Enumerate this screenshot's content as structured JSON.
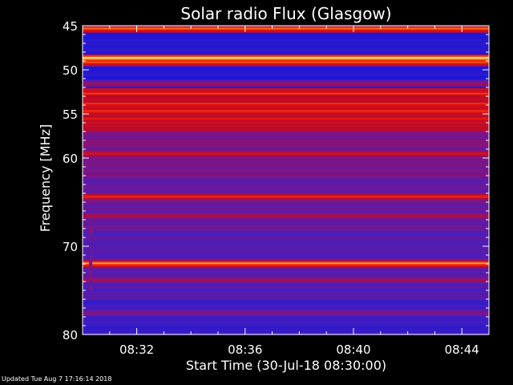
{
  "chart_data": {
    "type": "heatmap",
    "title": "Solar radio Flux (Glasgow)",
    "xlabel": "Start Time (30-Jul-18 08:30:00)",
    "ylabel": "Frequency [MHz]",
    "x_ticks": [
      "08:32",
      "08:36",
      "08:40",
      "08:44"
    ],
    "x_tick_minutes": [
      2,
      6,
      10,
      14
    ],
    "x_range_minutes": [
      0,
      15
    ],
    "y_ticks": [
      45,
      50,
      55,
      60,
      70,
      80
    ],
    "y_range": [
      45,
      80
    ],
    "bands": [
      {
        "freq": 45.3,
        "intensity": 0.9
      },
      {
        "freq": 48.6,
        "intensity": 1.0
      },
      {
        "freq": 49.1,
        "intensity": 0.85
      },
      {
        "freq": 51.5,
        "intensity": 0.55
      },
      {
        "freq": 52.6,
        "intensity": 0.85
      },
      {
        "freq": 53.8,
        "intensity": 0.8
      },
      {
        "freq": 54.6,
        "intensity": 0.82
      },
      {
        "freq": 55.5,
        "intensity": 0.78
      },
      {
        "freq": 59.4,
        "intensity": 0.75
      },
      {
        "freq": 64.3,
        "intensity": 0.78
      },
      {
        "freq": 66.5,
        "intensity": 0.6
      },
      {
        "freq": 71.9,
        "intensity": 0.95
      },
      {
        "freq": 73.8,
        "intensity": 0.6
      },
      {
        "freq": 77.5,
        "intensity": 0.5
      }
    ],
    "transients": [
      {
        "minute": 0.3,
        "freq_start": 67,
        "freq_end": 75,
        "intensity": 0.2
      }
    ]
  },
  "footer": {
    "updated": "Updated Tue Aug  7 17:16:14 2018"
  },
  "colors": {
    "background": "#000000",
    "low": "#1010e0",
    "mid": "#d00000",
    "high": "#ffffa0"
  }
}
